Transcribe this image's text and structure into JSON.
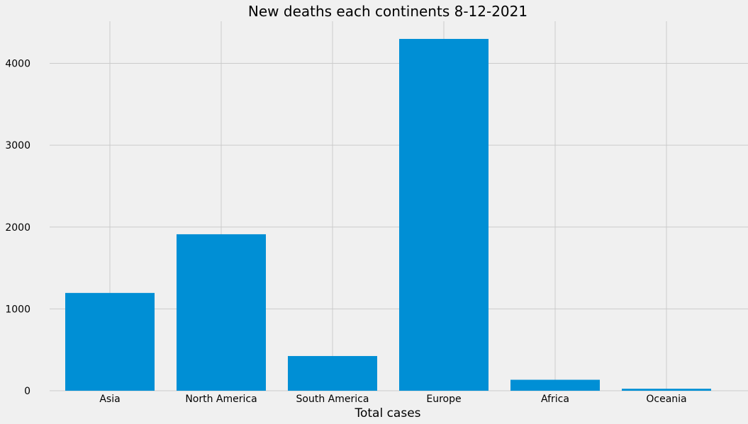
{
  "chart_data": {
    "type": "bar",
    "title": "New deaths each continents 8-12-2021",
    "xlabel": "Total cases",
    "ylabel": "",
    "categories": [
      "Asia",
      "North America",
      "South America",
      "Europe",
      "Africa",
      "Oceania"
    ],
    "values": [
      1195,
      1912,
      424,
      4299,
      134,
      24
    ],
    "ylim": [
      0,
      4515
    ],
    "yticks": [
      0,
      1000,
      2000,
      3000,
      4000
    ],
    "grid": true,
    "legend": "none",
    "colors": {
      "bar": "#008fd5",
      "background": "#f0f0f0",
      "grid": "#cbcbcb"
    }
  }
}
